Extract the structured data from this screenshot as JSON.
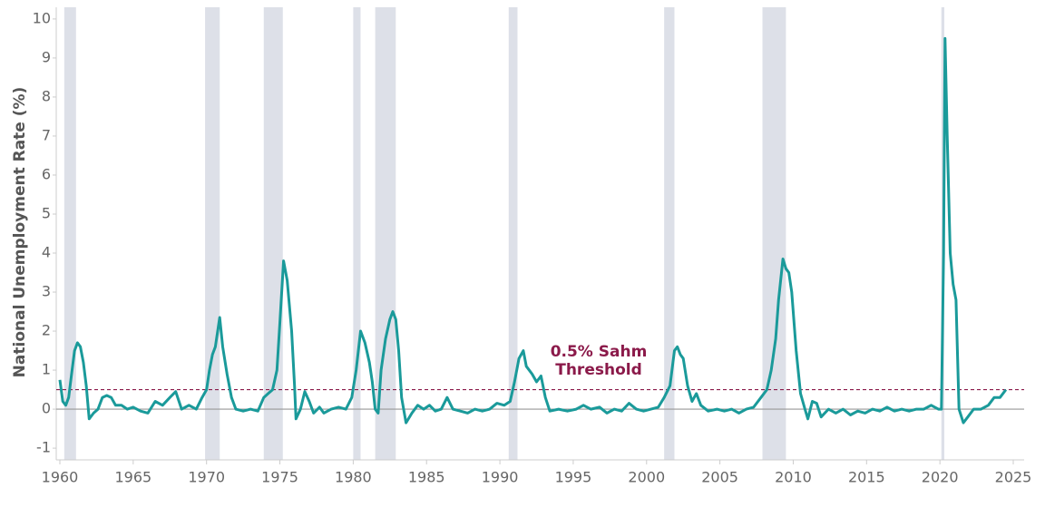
{
  "chart_data": {
    "type": "line",
    "y_label": "National Unemployment Rate (%)",
    "xlim": [
      1960,
      2025
    ],
    "ylim": [
      -1.3,
      10.3
    ],
    "xticks": [
      1960,
      1965,
      1970,
      1975,
      1980,
      1985,
      1990,
      1995,
      2000,
      2005,
      2010,
      2015,
      2020,
      2025
    ],
    "yticks": [
      -1,
      0,
      1,
      2,
      3,
      4,
      5,
      6,
      7,
      8,
      9,
      10
    ],
    "recessions": [
      [
        1960.3,
        1961.1
      ],
      [
        1969.9,
        1970.9
      ],
      [
        1973.9,
        1975.2
      ],
      [
        1980.0,
        1980.5
      ],
      [
        1981.5,
        1982.9
      ],
      [
        1990.6,
        1991.2
      ],
      [
        2001.2,
        2001.9
      ],
      [
        2007.9,
        2009.5
      ],
      [
        2020.1,
        2020.3
      ]
    ],
    "recession_color": "#dde0e8",
    "threshold": {
      "value": 0.5,
      "label": [
        "0.5% Sahm",
        "Threshold"
      ],
      "color": "#8b1a4a"
    },
    "series": [
      {
        "color": "#1a9a9a",
        "x": [
          1960.0,
          1960.2,
          1960.4,
          1960.6,
          1960.8,
          1961.0,
          1961.2,
          1961.4,
          1961.6,
          1961.8,
          1962.0,
          1962.3,
          1962.6,
          1962.9,
          1963.2,
          1963.5,
          1963.8,
          1964.2,
          1964.6,
          1965.0,
          1965.5,
          1966.0,
          1966.5,
          1967.0,
          1967.5,
          1967.9,
          1968.3,
          1968.8,
          1969.3,
          1969.7,
          1970.0,
          1970.2,
          1970.4,
          1970.6,
          1970.9,
          1971.1,
          1971.4,
          1971.7,
          1972.0,
          1972.5,
          1973.0,
          1973.5,
          1973.9,
          1974.2,
          1974.5,
          1974.8,
          1975.0,
          1975.25,
          1975.5,
          1975.8,
          1976.0,
          1976.1,
          1976.4,
          1976.7,
          1977.0,
          1977.3,
          1977.7,
          1978.0,
          1978.5,
          1979.0,
          1979.5,
          1979.9,
          1980.2,
          1980.5,
          1980.8,
          1981.1,
          1981.3,
          1981.5,
          1981.7,
          1981.9,
          1982.2,
          1982.5,
          1982.7,
          1982.9,
          1983.1,
          1983.3,
          1983.6,
          1984.0,
          1984.4,
          1984.8,
          1985.2,
          1985.6,
          1986.0,
          1986.4,
          1986.8,
          1987.3,
          1987.8,
          1988.3,
          1988.8,
          1989.3,
          1989.8,
          1990.3,
          1990.7,
          1991.0,
          1991.3,
          1991.6,
          1991.8,
          1992.2,
          1992.5,
          1992.8,
          1993.1,
          1993.4,
          1994.0,
          1994.6,
          1995.2,
          1995.7,
          1996.2,
          1996.8,
          1997.3,
          1997.8,
          1998.3,
          1998.8,
          1999.3,
          1999.8,
          2000.3,
          2000.8,
          2001.2,
          2001.6,
          2001.9,
          2002.1,
          2002.3,
          2002.5,
          2002.8,
          2003.1,
          2003.4,
          2003.7,
          2004.2,
          2004.8,
          2005.3,
          2005.8,
          2006.3,
          2006.8,
          2007.3,
          2007.8,
          2008.2,
          2008.5,
          2008.8,
          2009.0,
          2009.3,
          2009.5,
          2009.7,
          2009.9,
          2010.2,
          2010.5,
          2010.8,
          2011.0,
          2011.3,
          2011.6,
          2011.9,
          2012.4,
          2012.9,
          2013.4,
          2013.9,
          2014.4,
          2014.9,
          2015.4,
          2015.9,
          2016.4,
          2016.9,
          2017.4,
          2017.9,
          2018.4,
          2018.9,
          2019.4,
          2019.9,
          2020.1,
          2020.25,
          2020.35,
          2020.5,
          2020.7,
          2020.9,
          2021.1,
          2021.3,
          2021.6,
          2021.9,
          2022.3,
          2022.8,
          2023.3,
          2023.7,
          2024.1,
          2024.5
        ],
        "values": [
          0.75,
          0.2,
          0.1,
          0.3,
          0.9,
          1.5,
          1.7,
          1.6,
          1.2,
          0.6,
          -0.25,
          -0.1,
          0.0,
          0.3,
          0.35,
          0.3,
          0.1,
          0.1,
          0.0,
          0.05,
          -0.05,
          -0.1,
          0.2,
          0.1,
          0.3,
          0.45,
          0.0,
          0.1,
          0.0,
          0.3,
          0.5,
          1.0,
          1.4,
          1.6,
          2.35,
          1.6,
          0.9,
          0.3,
          0.0,
          -0.05,
          0.0,
          -0.05,
          0.3,
          0.4,
          0.5,
          1.0,
          2.2,
          3.8,
          3.3,
          2.0,
          0.6,
          -0.25,
          0.0,
          0.45,
          0.2,
          -0.1,
          0.05,
          -0.1,
          0.0,
          0.05,
          0.0,
          0.3,
          1.0,
          2.0,
          1.7,
          1.2,
          0.7,
          0.0,
          -0.1,
          1.0,
          1.8,
          2.3,
          2.5,
          2.3,
          1.5,
          0.3,
          -0.35,
          -0.1,
          0.1,
          0.0,
          0.1,
          -0.05,
          0.0,
          0.3,
          0.0,
          -0.05,
          -0.1,
          0.0,
          -0.05,
          0.0,
          0.15,
          0.1,
          0.2,
          0.7,
          1.3,
          1.5,
          1.1,
          0.9,
          0.7,
          0.85,
          0.3,
          -0.05,
          0.0,
          -0.05,
          0.0,
          0.1,
          0.0,
          0.05,
          -0.1,
          0.0,
          -0.05,
          0.15,
          0.0,
          -0.05,
          0.0,
          0.05,
          0.3,
          0.6,
          1.5,
          1.6,
          1.4,
          1.3,
          0.6,
          0.2,
          0.4,
          0.1,
          -0.05,
          0.0,
          -0.05,
          0.0,
          -0.1,
          0.0,
          0.05,
          0.3,
          0.5,
          1.0,
          1.8,
          2.8,
          3.85,
          3.6,
          3.5,
          3.0,
          1.5,
          0.4,
          0.0,
          -0.25,
          0.2,
          0.15,
          -0.2,
          0.0,
          -0.1,
          0.0,
          -0.15,
          -0.05,
          -0.1,
          0.0,
          -0.05,
          0.05,
          -0.05,
          0.0,
          -0.05,
          0.0,
          0.0,
          0.1,
          0.0,
          0.0,
          4.0,
          9.5,
          7.0,
          4.0,
          3.2,
          2.8,
          0.0,
          -0.35,
          -0.2,
          0.0,
          0.0,
          0.1,
          0.3,
          0.3,
          0.5
        ]
      }
    ]
  }
}
